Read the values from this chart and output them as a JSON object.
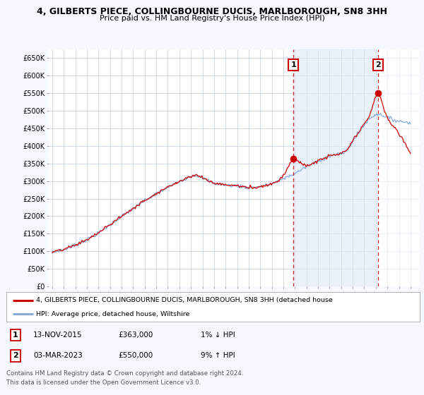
{
  "title": "4, GILBERTS PIECE, COLLINGBOURNE DUCIS, MARLBOROUGH, SN8 3HH",
  "subtitle": "Price paid vs. HM Land Registry's House Price Index (HPI)",
  "bg_color": "#f5f8ff",
  "plot_bg_color": "#ffffff",
  "grid_color": "#d0d8e8",
  "red_line_color": "#cc0000",
  "blue_line_color": "#88aadd",
  "shade_color": "#dce8f5",
  "marker1_date_year": 2015.87,
  "marker1_value": 363000,
  "marker1_label": "1",
  "marker1_text": "13-NOV-2015",
  "marker1_price": "£363,000",
  "marker1_hpi": "1% ↓ HPI",
  "marker2_date_year": 2023.17,
  "marker2_value": 550000,
  "marker2_label": "2",
  "marker2_text": "03-MAR-2023",
  "marker2_price": "£550,000",
  "marker2_hpi": "9% ↑ HPI",
  "ylim": [
    0,
    675000
  ],
  "xlim_start": 1994.7,
  "xlim_end": 2026.8,
  "yticks": [
    0,
    50000,
    100000,
    150000,
    200000,
    250000,
    300000,
    350000,
    400000,
    450000,
    500000,
    550000,
    600000,
    650000
  ],
  "ytick_labels": [
    "£0",
    "£50K",
    "£100K",
    "£150K",
    "£200K",
    "£250K",
    "£300K",
    "£350K",
    "£400K",
    "£450K",
    "£500K",
    "£550K",
    "£600K",
    "£650K"
  ],
  "xticks": [
    1995,
    1996,
    1997,
    1998,
    1999,
    2000,
    2001,
    2002,
    2003,
    2004,
    2005,
    2006,
    2007,
    2008,
    2009,
    2010,
    2011,
    2012,
    2013,
    2014,
    2015,
    2016,
    2017,
    2018,
    2019,
    2020,
    2021,
    2022,
    2023,
    2024,
    2025,
    2026
  ],
  "legend_red_label": "4, GILBERTS PIECE, COLLINGBOURNE DUCIS, MARLBOROUGH, SN8 3HH (detached house",
  "legend_blue_label": "HPI: Average price, detached house, Wiltshire",
  "footer_line1": "Contains HM Land Registry data © Crown copyright and database right 2024.",
  "footer_line2": "This data is licensed under the Open Government Licence v3.0."
}
